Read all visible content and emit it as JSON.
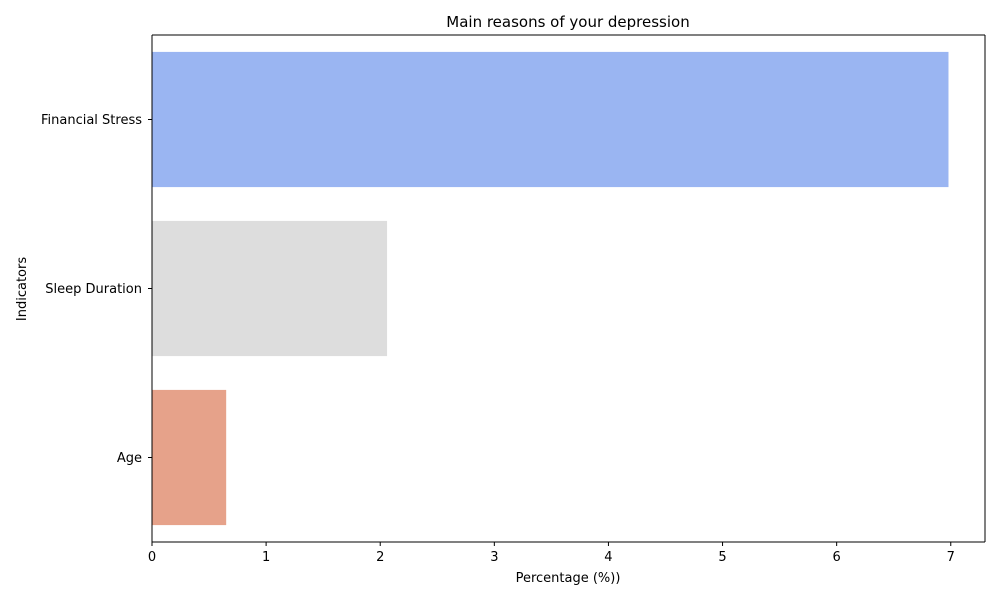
{
  "chart_data": {
    "type": "bar",
    "orientation": "horizontal",
    "title": "Main reasons of your depression",
    "xlabel": "Percentage (%))",
    "ylabel": "Indicators",
    "categories": [
      "Financial Stress",
      "Sleep Duration",
      "Age"
    ],
    "values": [
      6.98,
      2.06,
      0.65
    ],
    "colors": [
      "#9ab5f2",
      "#dddddd",
      "#e6a28a"
    ],
    "xlim": [
      0,
      7.3
    ],
    "xticks": [
      0,
      1,
      2,
      3,
      4,
      5,
      6,
      7
    ],
    "grid": false,
    "legend": "none"
  }
}
